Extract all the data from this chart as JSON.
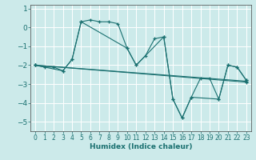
{
  "title": "",
  "xlabel": "Humidex (Indice chaleur)",
  "ylabel": "",
  "background_color": "#cceaea",
  "grid_color": "#ffffff",
  "line_color": "#1a7070",
  "series": [
    {
      "x": [
        0,
        1,
        2,
        3,
        4,
        5,
        6,
        7,
        8,
        9,
        10,
        11,
        12,
        13,
        14,
        15,
        16,
        17,
        18,
        19,
        20,
        21,
        22,
        23
      ],
      "y": [
        -2.0,
        -2.1,
        -2.1,
        -2.3,
        -1.7,
        0.3,
        0.4,
        0.3,
        0.3,
        0.2,
        -1.1,
        -2.0,
        -1.5,
        -0.6,
        -0.5,
        -3.8,
        -4.8,
        -3.7,
        -2.7,
        -2.7,
        -3.8,
        -2.0,
        -2.1,
        -2.8
      ]
    },
    {
      "x": [
        0,
        3,
        4,
        5,
        10,
        11,
        14,
        15,
        16,
        17,
        20,
        21,
        22,
        23
      ],
      "y": [
        -2.0,
        -2.3,
        -1.7,
        0.3,
        -1.1,
        -2.0,
        -0.5,
        -3.8,
        -4.8,
        -3.7,
        -3.8,
        -2.0,
        -2.1,
        -2.8
      ]
    },
    {
      "x": [
        0,
        23
      ],
      "y": [
        -2.0,
        -2.9
      ]
    },
    {
      "x": [
        0,
        23
      ],
      "y": [
        -2.0,
        -2.85
      ]
    }
  ],
  "xlim": [
    -0.5,
    23.5
  ],
  "ylim": [
    -5.5,
    1.2
  ],
  "yticks": [
    1,
    0,
    -1,
    -2,
    -3,
    -4,
    -5
  ],
  "xticks": [
    0,
    1,
    2,
    3,
    4,
    5,
    6,
    7,
    8,
    9,
    10,
    11,
    12,
    13,
    14,
    15,
    16,
    17,
    18,
    19,
    20,
    21,
    22,
    23
  ]
}
